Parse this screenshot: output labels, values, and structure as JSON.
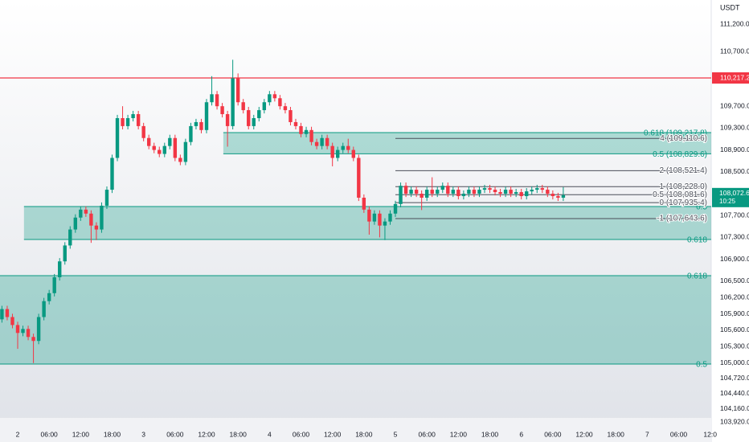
{
  "chart_data": {
    "type": "candlestick",
    "currency": "USDT",
    "up_color": "#089981",
    "down_color": "#f23645",
    "x": [
      -3,
      -2,
      -1,
      0,
      1,
      2,
      3,
      4,
      5,
      6,
      7,
      8,
      9,
      10,
      11,
      12,
      13,
      14,
      15,
      16,
      17,
      18,
      19,
      20,
      21,
      22,
      23,
      24,
      25,
      26,
      27,
      28,
      29,
      30,
      31,
      32,
      33,
      34,
      35,
      36,
      37,
      38,
      39,
      40,
      41,
      42,
      43,
      44,
      45,
      46,
      47,
      48,
      49,
      50,
      51,
      52,
      53,
      54,
      55,
      56,
      57,
      58,
      59,
      60,
      61,
      62,
      63,
      64,
      65,
      66,
      67,
      68,
      69,
      70,
      71,
      72,
      73,
      74,
      75,
      76,
      77,
      78,
      79,
      80,
      81,
      82,
      83,
      84,
      85,
      86,
      87,
      88,
      89,
      90,
      91,
      92,
      93,
      94,
      95,
      96,
      97,
      98,
      99,
      100,
      101,
      102,
      103,
      104
    ],
    "open": [
      105800,
      105988,
      105842,
      105696,
      105551,
      105624,
      105478,
      105405,
      105842,
      106133,
      106279,
      106570,
      106861,
      107152,
      107444,
      107662,
      107808,
      107735,
      107516,
      107444,
      107880,
      108172,
      108754,
      109482,
      109336,
      109482,
      109555,
      109336,
      109118,
      108972,
      108900,
      108827,
      108972,
      109118,
      108754,
      108681,
      109045,
      109336,
      109409,
      109264,
      109773,
      109919,
      109700,
      109555,
      109336,
      110210,
      109773,
      109628,
      109336,
      109482,
      109628,
      109773,
      109919,
      109846,
      109700,
      109628,
      109409,
      109336,
      109191,
      109264,
      109045,
      108972,
      109118,
      108972,
      108754,
      108900,
      108972,
      108900,
      108754,
      108026,
      107808,
      107590,
      107735,
      107516,
      107590,
      107735,
      107910,
      108244,
      108099,
      108172,
      108099,
      108026,
      108172,
      108099,
      108172,
      108244,
      108099,
      108172,
      108055,
      108099,
      108172,
      108099,
      108172,
      108201,
      108172,
      108128,
      108099,
      108172,
      108099,
      108128,
      108055,
      108142,
      108172,
      108201,
      108172,
      108099,
      108055,
      108026
    ],
    "high": [
      106048,
      106048,
      105902,
      105756,
      105684,
      105684,
      105538,
      105902,
      106193,
      106339,
      106630,
      106921,
      107212,
      107504,
      107722,
      107868,
      107868,
      107795,
      107576,
      107940,
      108232,
      108814,
      109542,
      109700,
      109542,
      109615,
      109615,
      109396,
      109178,
      109032,
      108960,
      109032,
      109178,
      109178,
      108814,
      109105,
      109396,
      109469,
      109469,
      109833,
      110250,
      109979,
      109760,
      109615,
      110550,
      110300,
      109833,
      109688,
      109542,
      109688,
      109833,
      109979,
      109979,
      109906,
      109760,
      109688,
      109469,
      109396,
      109324,
      109324,
      109105,
      109178,
      109178,
      109032,
      108960,
      109032,
      109105,
      108960,
      108814,
      108086,
      107868,
      107795,
      107795,
      107650,
      107795,
      107970,
      108304,
      108304,
      108232,
      108232,
      108159,
      108232,
      108400,
      108232,
      108304,
      108304,
      108232,
      108232,
      108159,
      108232,
      108232,
      108232,
      108261,
      108261,
      108232,
      108188,
      108232,
      108232,
      108188,
      108188,
      108202,
      108232,
      108261,
      108261,
      108232,
      108159,
      108115,
      108220
    ],
    "low": [
      105740,
      105782,
      105636,
      105260,
      105491,
      105418,
      105000,
      105345,
      105782,
      106073,
      106219,
      106510,
      106801,
      107092,
      107384,
      107602,
      107675,
      107200,
      107250,
      107384,
      107820,
      108112,
      108694,
      109276,
      109276,
      109422,
      109276,
      109058,
      108912,
      108840,
      108767,
      108767,
      108912,
      108694,
      108621,
      108621,
      108985,
      109276,
      109204,
      109204,
      109713,
      109640,
      109495,
      108960,
      109276,
      109713,
      109568,
      109276,
      109276,
      109422,
      109568,
      109713,
      109786,
      109640,
      109568,
      109349,
      109276,
      109131,
      109131,
      108985,
      108912,
      108912,
      108912,
      108600,
      108694,
      108840,
      108840,
      108694,
      107966,
      107748,
      107350,
      107530,
      107300,
      107250,
      107530,
      107675,
      107850,
      108039,
      108039,
      108039,
      107800,
      107966,
      108039,
      108039,
      108112,
      108039,
      108039,
      107995,
      107995,
      108039,
      108039,
      108039,
      108112,
      108112,
      108068,
      108039,
      108039,
      108039,
      108039,
      107995,
      107995,
      108082,
      108112,
      108112,
      108039,
      107995,
      107966,
      107966
    ],
    "close": [
      105988,
      105842,
      105696,
      105551,
      105624,
      105478,
      105405,
      105842,
      106133,
      106279,
      106570,
      106861,
      107152,
      107444,
      107662,
      107808,
      107735,
      107516,
      107444,
      107880,
      108172,
      108754,
      109482,
      109336,
      109482,
      109555,
      109336,
      109118,
      108972,
      108900,
      108827,
      108972,
      109118,
      108754,
      108681,
      109045,
      109336,
      109409,
      109264,
      109773,
      109919,
      109700,
      109555,
      109336,
      110210,
      109773,
      109628,
      109336,
      109482,
      109628,
      109773,
      109919,
      109846,
      109700,
      109628,
      109409,
      109336,
      109191,
      109264,
      109045,
      108972,
      109118,
      108972,
      108754,
      108900,
      108972,
      108900,
      108754,
      108026,
      107808,
      107590,
      107735,
      107516,
      107590,
      107735,
      107910,
      108244,
      108099,
      108172,
      108099,
      108026,
      108172,
      108099,
      108172,
      108244,
      108099,
      108172,
      108055,
      108099,
      108172,
      108099,
      108172,
      108201,
      108172,
      108128,
      108099,
      108172,
      108099,
      108128,
      108055,
      108142,
      108172,
      108201,
      108172,
      108099,
      108055,
      108026,
      108072.6
    ],
    "xlim": [
      -3.37,
      132.2
    ],
    "ylim": [
      103555.4,
      111643.7
    ],
    "xticks": [
      {
        "value": 0,
        "label": "2"
      },
      {
        "value": 6,
        "label": "06:00"
      },
      {
        "value": 12,
        "label": "12:00"
      },
      {
        "value": 18,
        "label": "18:00"
      },
      {
        "value": 24,
        "label": "3"
      },
      {
        "value": 30,
        "label": "06:00"
      },
      {
        "value": 36,
        "label": "12:00"
      },
      {
        "value": 42,
        "label": "18:00"
      },
      {
        "value": 48,
        "label": "4"
      },
      {
        "value": 54,
        "label": "06:00"
      },
      {
        "value": 60,
        "label": "12:00"
      },
      {
        "value": 66,
        "label": "18:00"
      },
      {
        "value": 72,
        "label": "5"
      },
      {
        "value": 78,
        "label": "06:00"
      },
      {
        "value": 84,
        "label": "12:00"
      },
      {
        "value": 90,
        "label": "18:00"
      },
      {
        "value": 96,
        "label": "6"
      },
      {
        "value": 102,
        "label": "06:00"
      },
      {
        "value": 108,
        "label": "12:00"
      },
      {
        "value": 114,
        "label": "18:00"
      },
      {
        "value": 120,
        "label": "7"
      },
      {
        "value": 126,
        "label": "06:00"
      },
      {
        "value": 132,
        "label": "12:0"
      }
    ],
    "yticks": [
      {
        "value": 111200,
        "label": "111,200.0"
      },
      {
        "value": 110700,
        "label": "110,700.0"
      },
      {
        "value": 109700,
        "label": "109,700.0"
      },
      {
        "value": 109300,
        "label": "109,300.0"
      },
      {
        "value": 108900,
        "label": "108,900.0"
      },
      {
        "value": 108500,
        "label": "108,500.0"
      },
      {
        "value": 107700,
        "label": "107,700.0"
      },
      {
        "value": 107300,
        "label": "107,300.0"
      },
      {
        "value": 106900,
        "label": "106,900.0"
      },
      {
        "value": 106500,
        "label": "106,500.0"
      },
      {
        "value": 106200,
        "label": "106,200.0"
      },
      {
        "value": 105900,
        "label": "105,900.0"
      },
      {
        "value": 105600,
        "label": "105,600.0"
      },
      {
        "value": 105300,
        "label": "105,300.0"
      },
      {
        "value": 105000,
        "label": "105,000.0"
      },
      {
        "value": 104720,
        "label": "104,720.0"
      },
      {
        "value": 104440,
        "label": "104,440.0"
      },
      {
        "value": 104160,
        "label": "104,160.0"
      },
      {
        "value": 103920,
        "label": "103,920.0"
      }
    ],
    "horizontal_line": {
      "value": 110217.2,
      "label": "110,217.2",
      "color": "#f23645"
    },
    "last_price": {
      "value": 108072.6,
      "label": "108,072.6",
      "countdown": "10:25"
    },
    "zones": [
      {
        "start": 39.2,
        "color": "#089981",
        "levels": [
          {
            "value": 109217.8,
            "label": "0.618 (109,217.8)"
          },
          {
            "value": 108829.6,
            "label": "0.5 (108,829.6)"
          }
        ]
      },
      {
        "start": 1.2,
        "color": "#089981",
        "levels": [
          {
            "value": 107864,
            "label": "0.5"
          },
          {
            "value": 107261,
            "label": "0.618"
          }
        ]
      },
      {
        "start": -3.37,
        "color": "#089981",
        "levels": [
          {
            "value": 106600,
            "label": "0.618"
          },
          {
            "value": 104982,
            "label": "0.5"
          }
        ]
      }
    ],
    "extension_lines": {
      "start": 72,
      "color": "#4a4e59",
      "levels": [
        {
          "value": 109110.6,
          "label": "4 (109,110.6)"
        },
        {
          "value": 108521.4,
          "label": "2 (108,521.4)"
        },
        {
          "value": 108228.0,
          "label": "1 (108,228.0)"
        },
        {
          "value": 108081.6,
          "label": "0.5 (108,081.6)"
        },
        {
          "value": 107935.4,
          "label": "0 (107,935.4)"
        },
        {
          "value": 107643.6,
          "label": "-1 (107,643.6)"
        }
      ]
    }
  }
}
